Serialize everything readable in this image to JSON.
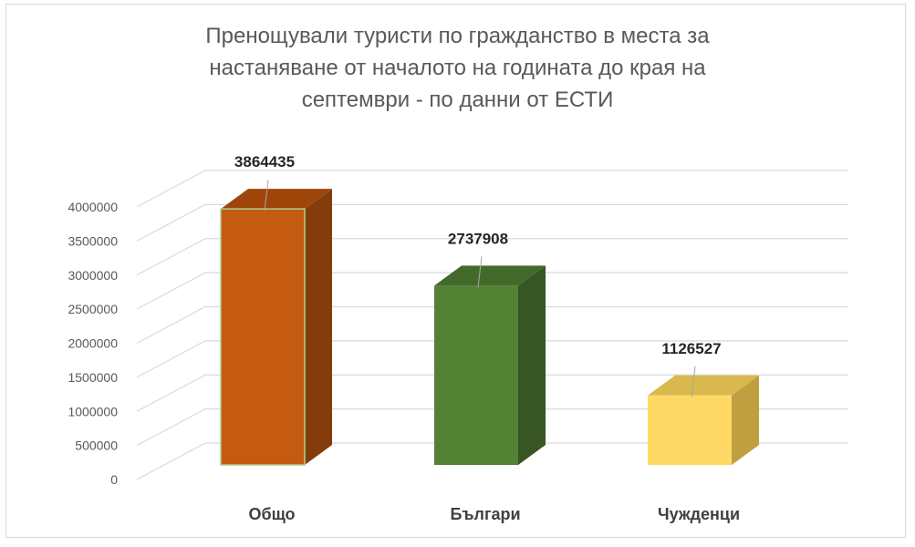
{
  "chart_data": {
    "type": "bar",
    "title_lines": [
      "Пренощували туристи по гражданство  в места за",
      "настаняване  от началото на годината до  края на",
      "септември  - по данни от  ЕСТИ"
    ],
    "categories": [
      "Общо",
      "Българи",
      "Чужденци"
    ],
    "values": [
      3864435,
      2737908,
      1126527
    ],
    "data_labels": [
      "3864435",
      "2737908",
      "1126527"
    ],
    "ylim": [
      0,
      4000000
    ],
    "y_ticks": [
      "0",
      "500000",
      "1000000",
      "1500000",
      "2000000",
      "2500000",
      "3000000",
      "3500000",
      "4000000"
    ],
    "colors": {
      "bars": [
        "#c55a11",
        "#548235",
        "#ffd966"
      ],
      "bar_sides": [
        "#843c0c",
        "#375623",
        "#bf9f3f"
      ],
      "bar_tops": [
        "#a04509",
        "#446a2b",
        "#d9b84d"
      ],
      "grid": "#d9d9d9",
      "axis_text": "#595959",
      "category_text": "#404040",
      "label_text": "#262626"
    },
    "three_d": true,
    "grid": true
  }
}
